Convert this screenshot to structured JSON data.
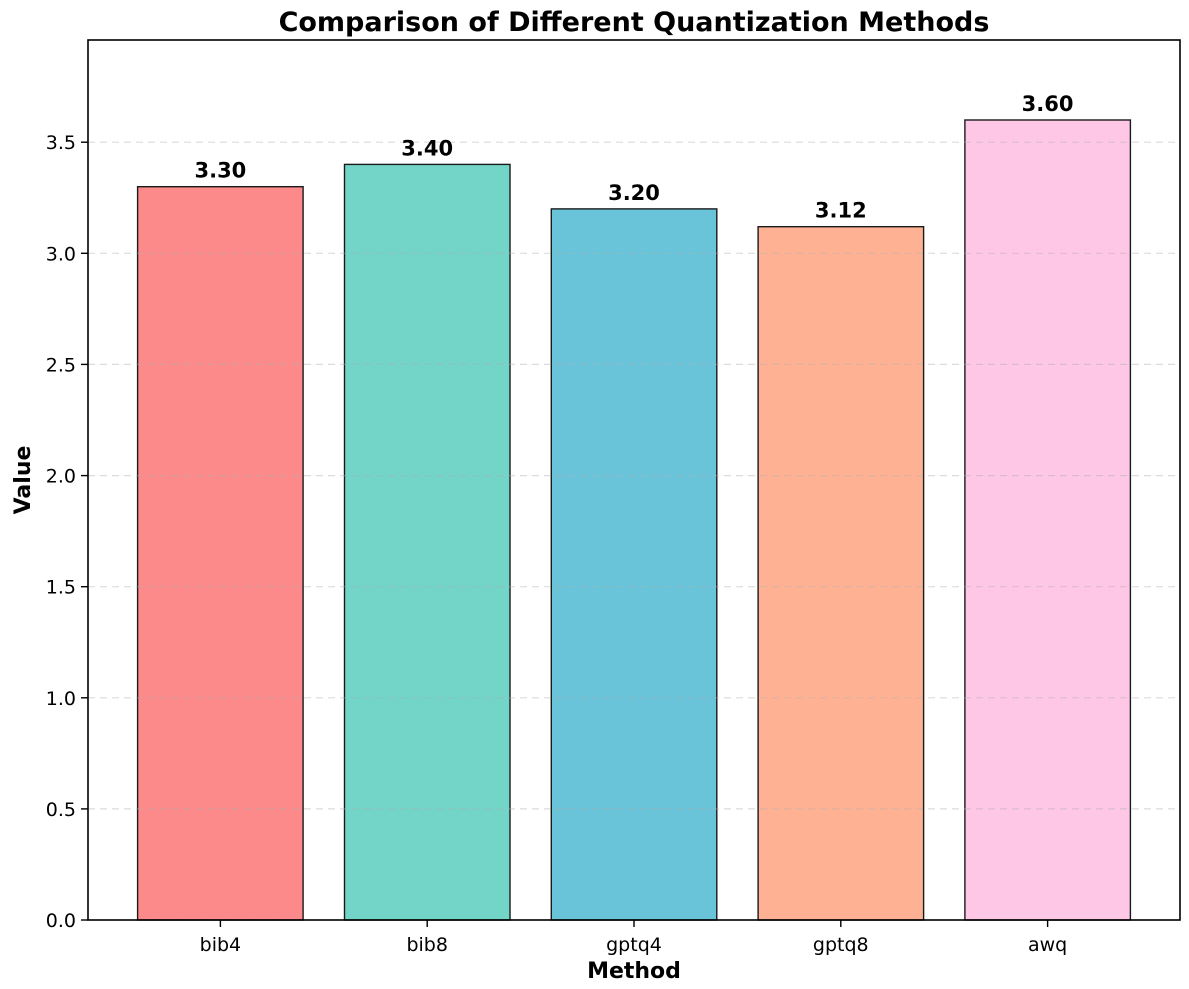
{
  "chart_data": {
    "type": "bar",
    "title": "Comparison of Different Quantization Methods",
    "xlabel": "Method",
    "ylabel": "Value",
    "categories": [
      "bib4",
      "bib8",
      "gptq4",
      "gptq8",
      "awq"
    ],
    "values": [
      3.3,
      3.4,
      3.2,
      3.12,
      3.6
    ],
    "value_labels": [
      "3.30",
      "3.40",
      "3.20",
      "3.12",
      "3.60"
    ],
    "bar_colors": [
      "#fc8a8a",
      "#72d5c8",
      "#69c4da",
      "#ffb293",
      "#ffc7e6"
    ],
    "bar_edge_color": "#1a1a1a",
    "yticks": [
      0.0,
      0.5,
      1.0,
      1.5,
      2.0,
      2.5,
      3.0,
      3.5
    ],
    "ytick_labels": [
      "0.0",
      "0.5",
      "1.0",
      "1.5",
      "2.0",
      "2.5",
      "3.0",
      "3.5"
    ],
    "ylim": [
      0,
      3.96
    ],
    "bar_width_fraction": 0.8,
    "grid": "horizontal dashed gridlines at each y tick, drawn above bars",
    "grid_color": "#b0b0b0",
    "grid_opacity": 0.45,
    "plot_background": "#ffffff",
    "spine_color": "#000000",
    "legend": "none"
  }
}
